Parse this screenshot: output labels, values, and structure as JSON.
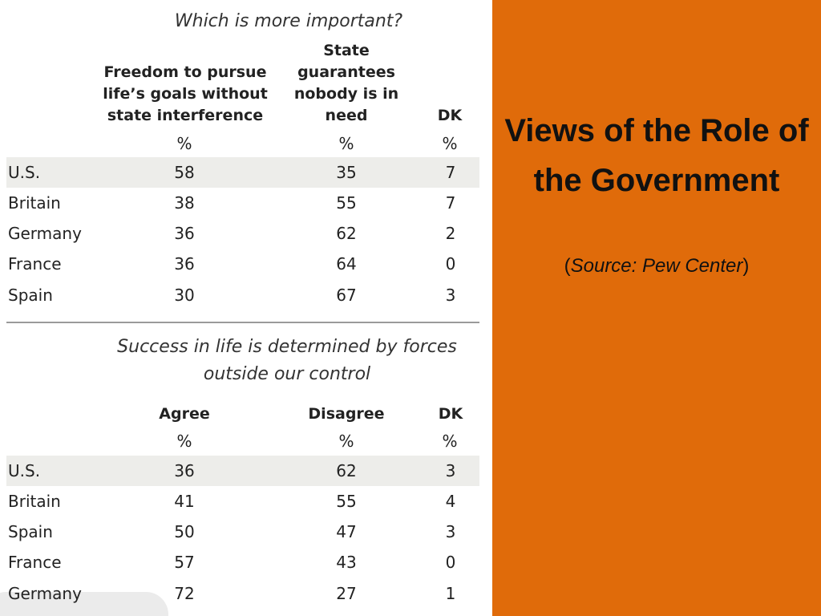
{
  "slide": {
    "title": "Views of the Role of the Government",
    "source_open": "(",
    "source_text": "Source: Pew Center",
    "source_close": ")"
  },
  "table1": {
    "title": "Which is more important?",
    "columns": [
      {
        "label": "Freedom to pursue life’s goals without state interference",
        "unit": "%"
      },
      {
        "label": "State guarantees nobody is in need",
        "unit": "%"
      },
      {
        "label": "DK",
        "unit": "%"
      }
    ],
    "rows": [
      {
        "country": "U.S.",
        "values": [
          "58",
          "35",
          "7"
        ]
      },
      {
        "country": "Britain",
        "values": [
          "38",
          "55",
          "7"
        ]
      },
      {
        "country": "Germany",
        "values": [
          "36",
          "62",
          "2"
        ]
      },
      {
        "country": "France",
        "values": [
          "36",
          "64",
          "0"
        ]
      },
      {
        "country": "Spain",
        "values": [
          "30",
          "67",
          "3"
        ]
      }
    ]
  },
  "table2": {
    "title": "Success in life is determined by forces outside our control",
    "columns": [
      {
        "label": "Agree",
        "unit": "%"
      },
      {
        "label": "Disagree",
        "unit": "%"
      },
      {
        "label": "DK",
        "unit": "%"
      }
    ],
    "rows": [
      {
        "country": "U.S.",
        "values": [
          "36",
          "62",
          "3"
        ]
      },
      {
        "country": "Britain",
        "values": [
          "41",
          "55",
          "4"
        ]
      },
      {
        "country": "Spain",
        "values": [
          "50",
          "47",
          "3"
        ]
      },
      {
        "country": "France",
        "values": [
          "57",
          "43",
          "0"
        ]
      },
      {
        "country": "Germany",
        "values": [
          "72",
          "27",
          "1"
        ]
      }
    ]
  }
}
